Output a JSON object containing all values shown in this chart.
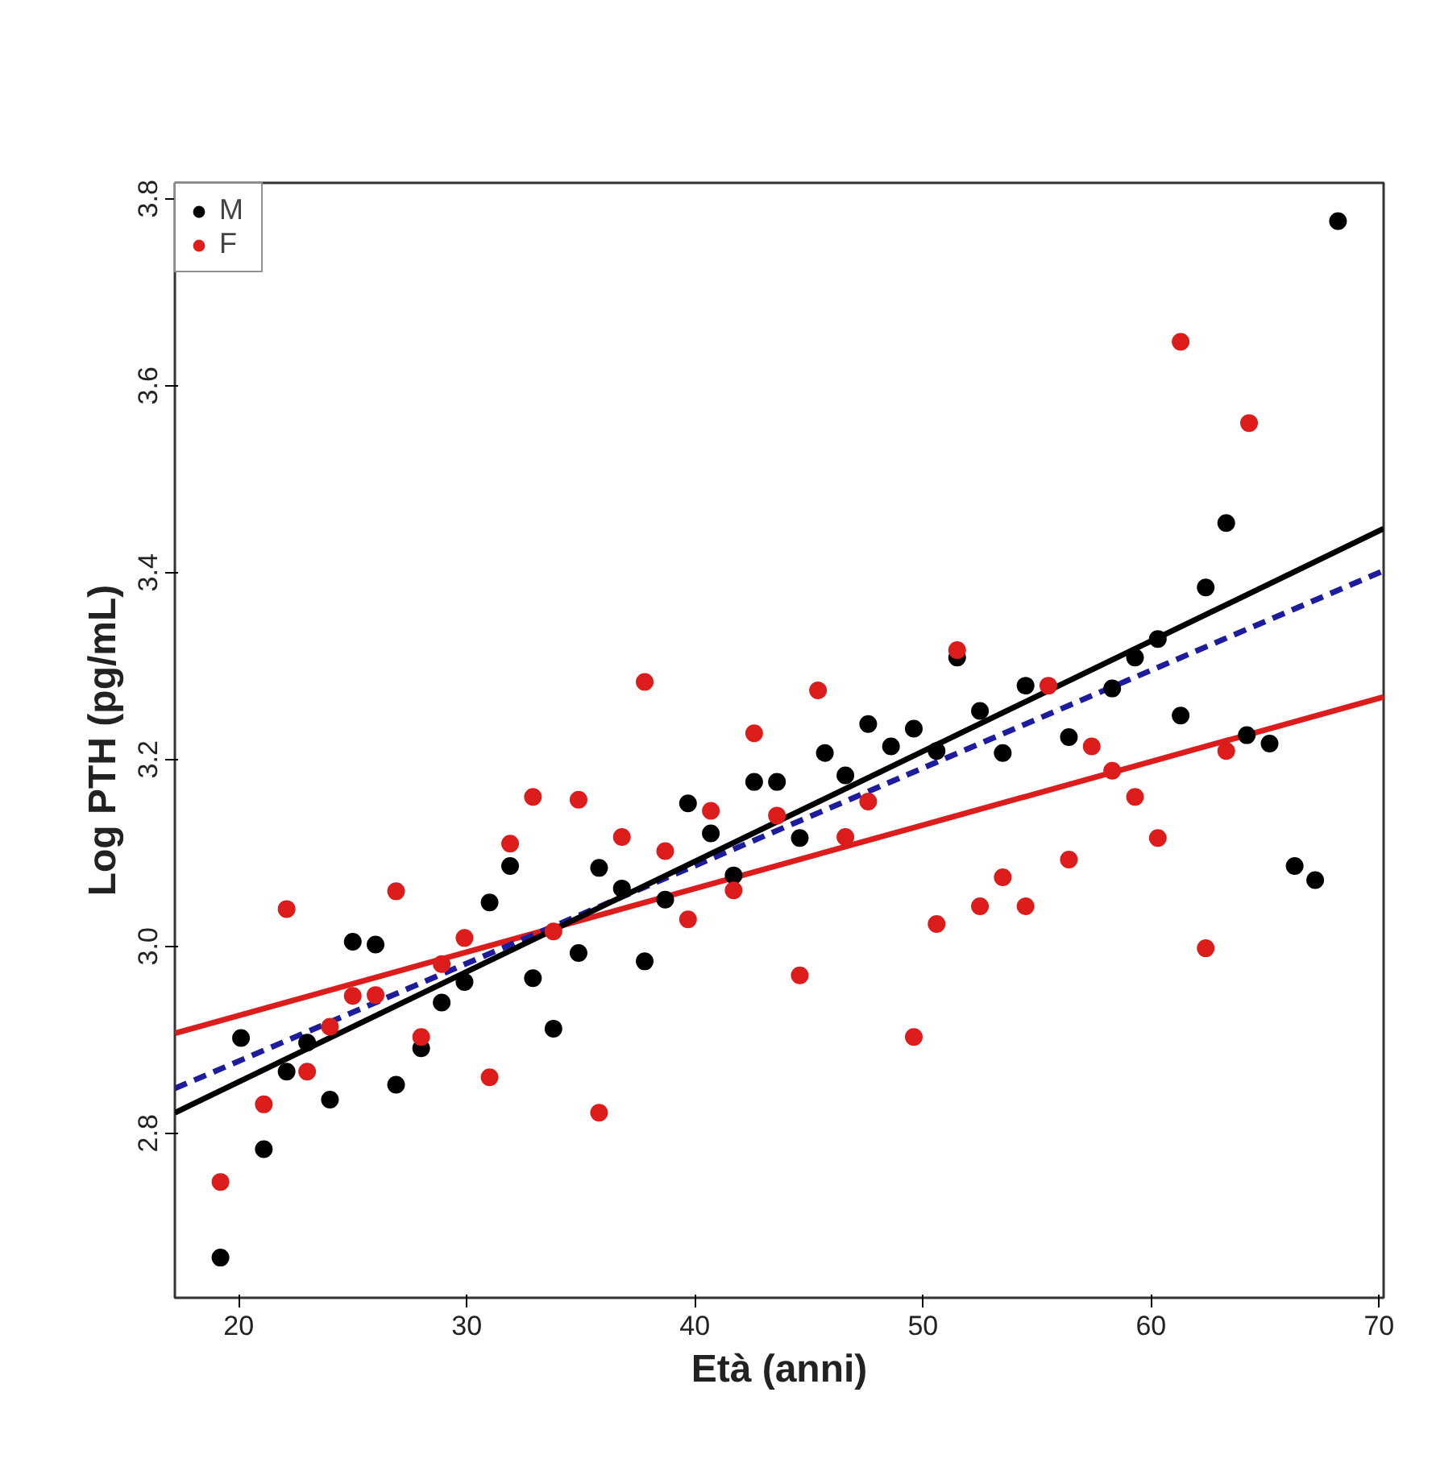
{
  "chart_data": {
    "type": "scatter",
    "xlabel": "Età (anni)",
    "ylabel": "Log PTH (pg/mL)",
    "xlim": [
      17.2,
      70.2
    ],
    "ylim": [
      2.624,
      3.817
    ],
    "xticks": [
      20,
      30,
      40,
      50,
      60,
      70
    ],
    "yticks": [
      2.8,
      {
        "value": 3.0,
        "label": "3.0"
      },
      3.2,
      3.4,
      3.6,
      3.8
    ],
    "grid": false,
    "legend": "top left",
    "series": [
      {
        "name": "M",
        "marker": "circle",
        "color": "#000000",
        "x": [
          19.2,
          20.1,
          21.1,
          22.1,
          23.0,
          24.0,
          25.0,
          26.0,
          26.9,
          28.0,
          28.9,
          29.9,
          31.0,
          31.9,
          32.9,
          33.8,
          34.9,
          35.8,
          36.8,
          37.8,
          38.7,
          39.7,
          40.7,
          41.7,
          42.6,
          43.6,
          44.6,
          45.7,
          46.6,
          47.6,
          48.6,
          49.6,
          50.6,
          51.5,
          52.5,
          53.5,
          54.5,
          56.4,
          58.3,
          59.3,
          60.3,
          61.3,
          62.4,
          63.3,
          64.2,
          65.2,
          66.3,
          67.2,
          68.2
        ],
        "values": [
          2.667,
          2.902,
          2.783,
          2.866,
          2.897,
          2.836,
          3.005,
          3.002,
          2.852,
          2.891,
          2.94,
          2.962,
          3.047,
          3.086,
          2.966,
          2.912,
          2.993,
          3.084,
          3.062,
          2.984,
          3.05,
          3.153,
          3.121,
          3.076,
          3.176,
          3.176,
          3.116,
          3.207,
          3.183,
          3.238,
          3.214,
          3.233,
          3.209,
          3.309,
          3.252,
          3.207,
          3.279,
          3.224,
          3.276,
          3.309,
          3.329,
          3.247,
          3.384,
          3.453,
          3.226,
          3.217,
          3.086,
          3.071,
          3.776
        ]
      },
      {
        "name": "F",
        "marker": "circle",
        "color": "#dd1c1c",
        "x": [
          19.2,
          21.1,
          22.1,
          23.0,
          24.0,
          25.0,
          26.0,
          26.9,
          28.0,
          28.9,
          29.9,
          31.0,
          31.9,
          32.9,
          33.8,
          34.9,
          35.8,
          36.8,
          37.8,
          38.7,
          39.7,
          40.7,
          41.7,
          42.6,
          43.6,
          44.6,
          45.4,
          46.6,
          47.6,
          49.6,
          50.6,
          51.5,
          52.5,
          53.5,
          54.5,
          55.5,
          56.4,
          57.4,
          58.3,
          59.3,
          60.3,
          61.3,
          62.4,
          63.3,
          64.3
        ],
        "values": [
          2.748,
          2.831,
          3.04,
          2.866,
          2.914,
          2.947,
          2.948,
          3.059,
          2.903,
          2.981,
          3.009,
          2.86,
          3.11,
          3.16,
          3.016,
          3.157,
          2.822,
          3.117,
          3.283,
          3.102,
          3.029,
          3.145,
          3.06,
          3.228,
          3.14,
          2.969,
          3.274,
          3.117,
          3.155,
          2.903,
          3.024,
          3.317,
          3.043,
          3.074,
          3.043,
          3.279,
          3.093,
          3.214,
          3.188,
          3.16,
          3.116,
          3.647,
          2.998,
          3.209,
          3.56
        ]
      },
      {
        "type": "line",
        "color": "#dd1c1c",
        "line_style": "solid",
        "x": [
          17.2,
          70.2
        ],
        "values": [
          2.907,
          3.267
        ]
      },
      {
        "type": "line",
        "color": "#1c1c9c",
        "line_style": "dashed",
        "x": [
          17.2,
          70.2
        ],
        "values": [
          2.848,
          3.402
        ]
      },
      {
        "type": "line",
        "color": "#000000",
        "line_style": "solid",
        "x": [
          17.2,
          70.2
        ],
        "values": [
          2.822,
          3.447
        ]
      }
    ]
  }
}
